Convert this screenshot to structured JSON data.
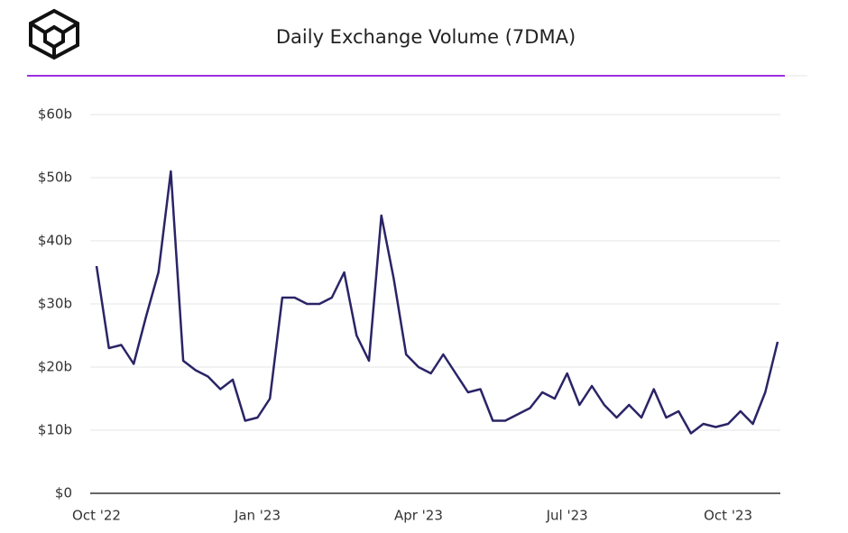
{
  "chart_data": {
    "type": "line",
    "title": "Daily Exchange Volume (7DMA)",
    "categories": [
      "Oct '22",
      null,
      null,
      null,
      null,
      null,
      null,
      null,
      null,
      null,
      null,
      null,
      null,
      "Jan '23",
      null,
      null,
      null,
      null,
      null,
      null,
      null,
      null,
      null,
      null,
      null,
      null,
      "Apr '23",
      null,
      null,
      null,
      null,
      null,
      null,
      null,
      null,
      null,
      null,
      null,
      "Jul '23",
      null,
      null,
      null,
      null,
      null,
      null,
      null,
      null,
      null,
      null,
      null,
      null,
      "Oct '23",
      null,
      null,
      null,
      null
    ],
    "series": [
      {
        "name": "Daily Exchange Volume",
        "color": "#2a2466",
        "values": [
          36,
          23,
          23.5,
          20.5,
          28,
          35,
          51,
          21,
          19.5,
          18.5,
          16.5,
          18,
          11.5,
          12,
          15,
          31,
          31,
          30,
          30,
          31,
          35,
          25,
          21,
          44,
          34,
          22,
          20,
          19,
          22,
          19,
          16,
          16.5,
          11.5,
          11.5,
          12.5,
          13.5,
          16,
          15,
          19,
          14,
          17,
          14,
          12,
          14,
          12,
          16.5,
          12,
          13,
          9.5,
          11,
          10.5,
          11,
          13,
          11,
          16,
          24
        ]
      }
    ],
    "ylim": [
      0,
      60
    ],
    "yticks": [
      {
        "value": 0,
        "label": "$0"
      },
      {
        "value": 10,
        "label": "$10b"
      },
      {
        "value": 20,
        "label": "$20b"
      },
      {
        "value": 30,
        "label": "$30b"
      },
      {
        "value": 40,
        "label": "$40b"
      },
      {
        "value": 50,
        "label": "$50b"
      },
      {
        "value": 60,
        "label": "$60b"
      }
    ],
    "grid": true
  }
}
